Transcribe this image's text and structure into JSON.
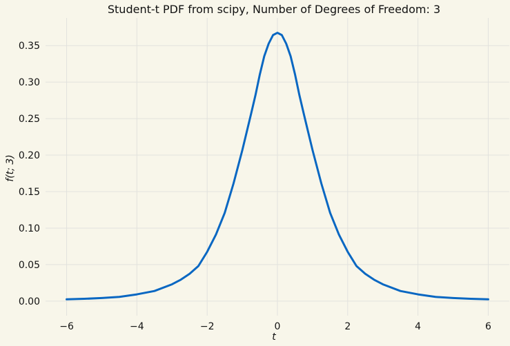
{
  "chart_data": {
    "type": "line",
    "title": "Student-t PDF from scipy, Number of Degrees of Freedom: 3",
    "xlabel": "t",
    "ylabel": "f(t; 3)",
    "xlim": [
      -6.6,
      6.6
    ],
    "ylim": [
      -0.02,
      0.388
    ],
    "grid": true,
    "x_ticks": [
      -6,
      -4,
      -2,
      0,
      2,
      4,
      6
    ],
    "x_tick_labels": [
      "−6",
      "−4",
      "−2",
      "0",
      "2",
      "4",
      "6"
    ],
    "y_ticks": [
      0.0,
      0.05,
      0.1,
      0.15,
      0.2,
      0.25,
      0.3,
      0.35
    ],
    "y_tick_labels": [
      "0.00",
      "0.05",
      "0.10",
      "0.15",
      "0.20",
      "0.25",
      "0.30",
      "0.35"
    ],
    "series": [
      {
        "color": "#0967c2",
        "x": [
          -6.0,
          -5.5,
          -5.0,
          -4.5,
          -4.0,
          -3.5,
          -3.0,
          -2.75,
          -2.5,
          -2.25,
          -2.0,
          -1.75,
          -1.5,
          -1.25,
          -1.0,
          -0.875,
          -0.75,
          -0.625,
          -0.5,
          -0.375,
          -0.25,
          -0.125,
          0.0,
          0.125,
          0.25,
          0.375,
          0.5,
          0.625,
          0.75,
          0.875,
          1.0,
          1.25,
          1.5,
          1.75,
          2.0,
          2.25,
          2.5,
          2.75,
          3.0,
          3.5,
          4.0,
          4.5,
          5.0,
          5.5,
          6.0
        ],
        "y": [
          0.0024,
          0.0031,
          0.0042,
          0.0057,
          0.0092,
          0.0138,
          0.023,
          0.0293,
          0.0374,
          0.048,
          0.0675,
          0.0911,
          0.1209,
          0.1611,
          0.2067,
          0.2316,
          0.2566,
          0.2822,
          0.3108,
          0.3356,
          0.3527,
          0.3645,
          0.3676,
          0.3645,
          0.3527,
          0.3356,
          0.3108,
          0.2822,
          0.2566,
          0.2316,
          0.2067,
          0.1611,
          0.1209,
          0.0911,
          0.0675,
          0.048,
          0.0374,
          0.0293,
          0.023,
          0.0138,
          0.0092,
          0.0057,
          0.0042,
          0.0031,
          0.0024
        ]
      }
    ]
  }
}
